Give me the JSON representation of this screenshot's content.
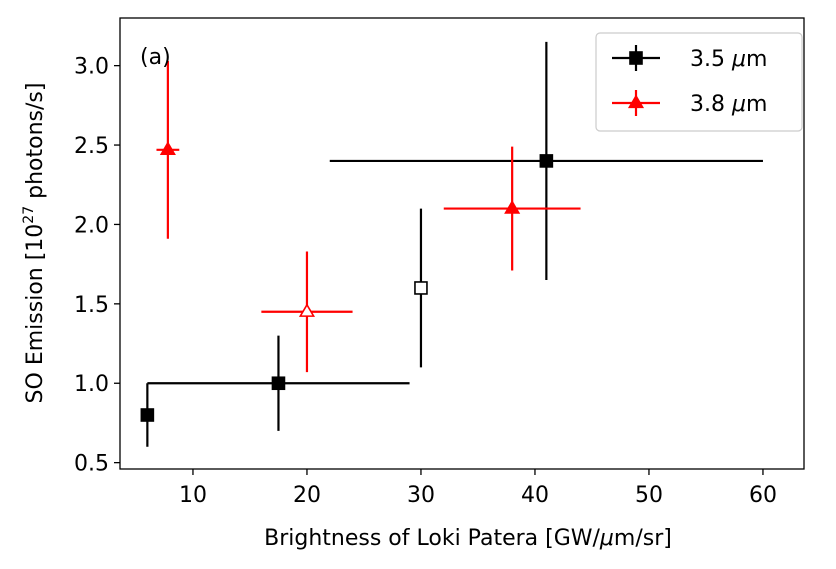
{
  "chart_data": {
    "type": "scatter",
    "panel_label": "(a)",
    "xlabel_prefix": "Brightness of Loki Patera [GW/",
    "xlabel_mu": "μ",
    "xlabel_suffix": "m/sr]",
    "ylabel_prefix": "SO Emission [10",
    "ylabel_exp": "27",
    "ylabel_suffix": " photons/s]",
    "xlim": [
      3.6,
      63.6
    ],
    "ylim": [
      0.46,
      3.3
    ],
    "xticks": [
      10,
      20,
      30,
      40,
      50,
      60
    ],
    "xtick_labels": [
      "10",
      "20",
      "30",
      "40",
      "50",
      "60"
    ],
    "yticks": [
      0.5,
      1.0,
      1.5,
      2.0,
      2.5,
      3.0
    ],
    "ytick_labels": [
      "0.5",
      "1.0",
      "1.5",
      "2.0",
      "2.5",
      "3.0"
    ],
    "grid": false,
    "legend_position": "top-right",
    "series": [
      {
        "name": "3.5 μm",
        "legend_value": "3.5",
        "legend_unit": "m",
        "color": "#000000",
        "marker": "square",
        "points": [
          {
            "x": 6.0,
            "y": 0.8,
            "xerr_lo": 0.0,
            "xerr_hi": 0.0,
            "yerr_lo": 0.2,
            "yerr_hi": 0.2,
            "filled": true
          },
          {
            "x": 17.5,
            "y": 1.0,
            "xerr_lo": 11.5,
            "xerr_hi": 11.5,
            "yerr_lo": 0.3,
            "yerr_hi": 0.3,
            "filled": true
          },
          {
            "x": 30.0,
            "y": 1.6,
            "xerr_lo": 0.0,
            "xerr_hi": 0.0,
            "yerr_lo": 0.5,
            "yerr_hi": 0.5,
            "filled": false
          },
          {
            "x": 41.0,
            "y": 2.4,
            "xerr_lo": 19.0,
            "xerr_hi": 19.0,
            "yerr_lo": 0.75,
            "yerr_hi": 0.75,
            "filled": true
          }
        ]
      },
      {
        "name": "3.8 μm",
        "legend_value": "3.8",
        "legend_unit": "m",
        "color": "#ff0000",
        "marker": "triangle",
        "points": [
          {
            "x": 7.8,
            "y": 2.47,
            "xerr_lo": 1.0,
            "xerr_hi": 1.0,
            "yerr_lo": 0.56,
            "yerr_hi": 0.56,
            "filled": true
          },
          {
            "x": 20.0,
            "y": 1.45,
            "xerr_lo": 4.0,
            "xerr_hi": 4.0,
            "yerr_lo": 0.38,
            "yerr_hi": 0.38,
            "filled": false
          },
          {
            "x": 38.0,
            "y": 2.1,
            "xerr_lo": 6.0,
            "xerr_hi": 6.0,
            "yerr_lo": 0.39,
            "yerr_hi": 0.39,
            "filled": true
          }
        ]
      }
    ]
  }
}
